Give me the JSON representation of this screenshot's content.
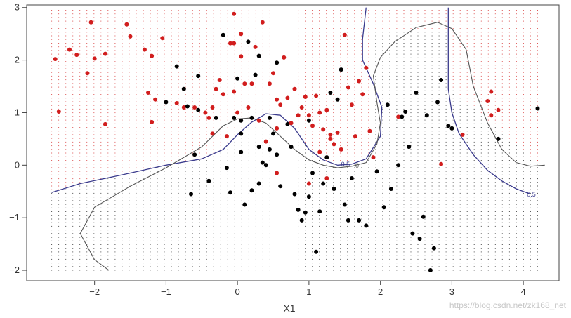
{
  "chart_data": {
    "type": "scatter",
    "title": "",
    "xlabel": "X1",
    "ylabel": "",
    "xlim": [
      -2.95,
      4.5
    ],
    "ylim": [
      -2.2,
      3.05
    ],
    "xticks": [
      "−2",
      "−1",
      "0",
      "1",
      "2",
      "3",
      "4"
    ],
    "xtick_values": [
      -2,
      -1,
      0,
      1,
      2,
      3,
      4
    ],
    "yticks": [
      "−2",
      "−1",
      "0",
      "1",
      "2",
      "3"
    ],
    "ytick_values": [
      -2,
      -1,
      0,
      1,
      2,
      3
    ],
    "grid": {
      "x_range": [
        -2.6,
        4.2
      ],
      "y_range": [
        -2.0,
        2.95
      ],
      "cols": 70,
      "rows": 72
    },
    "colors": {
      "class0": "#000000",
      "class1": "#d11d1d",
      "grid_class0": "#000000",
      "grid_class1": "#d11d1d",
      "bayes_boundary": "#3a3a8c",
      "model_boundary": "#555555"
    },
    "series": [
      {
        "class": 1,
        "points": [
          [
            -2.55,
            2.02
          ],
          [
            -2.5,
            1.02
          ],
          [
            -2.35,
            2.2
          ],
          [
            -2.25,
            2.1
          ],
          [
            -2.1,
            1.75
          ],
          [
            -2.05,
            2.72
          ],
          [
            -2.0,
            2.03
          ],
          [
            -1.85,
            2.12
          ],
          [
            -1.85,
            0.78
          ],
          [
            -1.55,
            2.68
          ],
          [
            -1.5,
            2.45
          ],
          [
            -1.3,
            2.2
          ],
          [
            -1.25,
            1.38
          ],
          [
            -1.2,
            2.08
          ],
          [
            -1.2,
            0.82
          ],
          [
            -1.15,
            1.25
          ],
          [
            -1.05,
            2.42
          ],
          [
            -0.85,
            1.18
          ],
          [
            -0.75,
            1.1
          ],
          [
            -0.6,
            1.1
          ],
          [
            -0.45,
            1.0
          ],
          [
            -0.4,
            0.9
          ],
          [
            -0.35,
            1.1
          ],
          [
            -0.35,
            0.6
          ],
          [
            -0.3,
            1.45
          ],
          [
            -0.25,
            1.62
          ],
          [
            -0.2,
            1.35
          ],
          [
            -0.15,
            0.55
          ],
          [
            -0.1,
            2.32
          ],
          [
            -0.05,
            2.88
          ],
          [
            -0.05,
            2.32
          ],
          [
            -0.05,
            1.4
          ],
          [
            0.0,
            1.0
          ],
          [
            0.05,
            2.5
          ],
          [
            0.05,
            2.07
          ],
          [
            0.1,
            1.55
          ],
          [
            0.15,
            1.1
          ],
          [
            0.2,
            1.55
          ],
          [
            0.25,
            2.25
          ],
          [
            0.3,
            0.85
          ],
          [
            0.35,
            2.72
          ],
          [
            0.4,
            0.45
          ],
          [
            0.45,
            1.55
          ],
          [
            0.5,
            1.75
          ],
          [
            0.55,
            1.25
          ],
          [
            0.55,
            0.7
          ],
          [
            0.6,
            1.15
          ],
          [
            0.65,
            2.05
          ],
          [
            0.7,
            1.28
          ],
          [
            0.75,
            0.8
          ],
          [
            0.85,
            0.95
          ],
          [
            0.9,
            1.1
          ],
          [
            0.95,
            1.3
          ],
          [
            1.0,
            0.95
          ],
          [
            1.05,
            0.75
          ],
          [
            1.1,
            1.32
          ],
          [
            1.15,
            1.0
          ],
          [
            1.2,
            0.68
          ],
          [
            1.25,
            1.05
          ],
          [
            1.3,
            0.5
          ],
          [
            1.35,
            0.4
          ],
          [
            1.4,
            0.62
          ],
          [
            1.45,
            0.3
          ],
          [
            1.5,
            2.48
          ],
          [
            1.55,
            1.48
          ],
          [
            1.6,
            1.15
          ],
          [
            1.65,
            0.55
          ],
          [
            1.7,
            1.6
          ],
          [
            1.75,
            1.35
          ],
          [
            1.8,
            1.85
          ],
          [
            1.85,
            0.65
          ],
          [
            1.9,
            0.15
          ],
          [
            1.15,
            0.25
          ],
          [
            0.55,
            -0.15
          ],
          [
            1.0,
            -0.35
          ],
          [
            1.25,
            -0.25
          ],
          [
            2.25,
            0.92
          ],
          [
            2.85,
            0.02
          ],
          [
            3.15,
            0.58
          ],
          [
            3.5,
            1.22
          ],
          [
            3.55,
            1.4
          ],
          [
            3.55,
            0.95
          ],
          [
            3.65,
            1.05
          ],
          [
            1.3,
            0.58
          ],
          [
            0.8,
            1.45
          ]
        ]
      },
      {
        "class": 0,
        "points": [
          [
            -1.0,
            1.2
          ],
          [
            -0.85,
            1.88
          ],
          [
            -0.75,
            1.45
          ],
          [
            -0.7,
            1.12
          ],
          [
            -0.65,
            -0.55
          ],
          [
            -0.6,
            0.2
          ],
          [
            -0.55,
            1.05
          ],
          [
            -0.55,
            1.7
          ],
          [
            -0.4,
            -0.3
          ],
          [
            -0.3,
            0.9
          ],
          [
            -0.2,
            2.48
          ],
          [
            -0.1,
            -0.52
          ],
          [
            -0.05,
            0.9
          ],
          [
            0.0,
            1.65
          ],
          [
            0.05,
            0.85
          ],
          [
            0.05,
            0.6
          ],
          [
            0.1,
            -0.75
          ],
          [
            0.15,
            2.35
          ],
          [
            0.2,
            0.9
          ],
          [
            0.2,
            -0.48
          ],
          [
            0.25,
            1.72
          ],
          [
            0.3,
            2.08
          ],
          [
            0.3,
            0.35
          ],
          [
            0.35,
            0.05
          ],
          [
            0.4,
            -0.0
          ],
          [
            0.45,
            0.3
          ],
          [
            0.45,
            0.9
          ],
          [
            0.5,
            0.6
          ],
          [
            0.55,
            1.95
          ],
          [
            0.55,
            0.2
          ],
          [
            0.6,
            -0.4
          ],
          [
            0.7,
            0.78
          ],
          [
            0.75,
            0.35
          ],
          [
            0.8,
            -0.55
          ],
          [
            0.85,
            -0.85
          ],
          [
            0.9,
            -1.05
          ],
          [
            0.95,
            -0.9
          ],
          [
            1.0,
            -0.6
          ],
          [
            1.05,
            -0.15
          ],
          [
            1.1,
            -1.65
          ],
          [
            1.15,
            -0.88
          ],
          [
            1.2,
            -0.35
          ],
          [
            1.25,
            0.15
          ],
          [
            1.3,
            1.38
          ],
          [
            1.35,
            -0.45
          ],
          [
            1.4,
            1.25
          ],
          [
            1.45,
            1.82
          ],
          [
            1.5,
            -0.75
          ],
          [
            1.55,
            -1.05
          ],
          [
            1.6,
            -0.25
          ],
          [
            1.7,
            -1.05
          ],
          [
            1.8,
            -1.15
          ],
          [
            1.95,
            -0.12
          ],
          [
            2.05,
            -0.8
          ],
          [
            2.1,
            1.15
          ],
          [
            2.15,
            -0.45
          ],
          [
            2.25,
            0.0
          ],
          [
            2.3,
            0.92
          ],
          [
            2.35,
            1.02
          ],
          [
            2.4,
            0.35
          ],
          [
            2.45,
            -1.3
          ],
          [
            2.5,
            1.38
          ],
          [
            2.55,
            -1.4
          ],
          [
            2.6,
            -0.98
          ],
          [
            2.65,
            0.95
          ],
          [
            2.7,
            -2.0
          ],
          [
            2.75,
            -1.58
          ],
          [
            2.8,
            1.2
          ],
          [
            2.85,
            1.62
          ],
          [
            2.95,
            0.75
          ],
          [
            3.0,
            0.7
          ],
          [
            3.65,
            0.5
          ],
          [
            4.2,
            1.08
          ],
          [
            -0.15,
            -0.05
          ],
          [
            0.3,
            -0.35
          ],
          [
            0.05,
            0.25
          ],
          [
            1.0,
            0.85
          ]
        ]
      }
    ],
    "contours": [
      {
        "name": "bayes",
        "label": "0.5",
        "points": [
          [
            -2.6,
            -0.52
          ],
          [
            -2.2,
            -0.35
          ],
          [
            -1.6,
            -0.18
          ],
          [
            -1.0,
            0.0
          ],
          [
            -0.5,
            0.12
          ],
          [
            -0.2,
            0.3
          ],
          [
            0.0,
            0.58
          ],
          [
            0.2,
            0.82
          ],
          [
            0.4,
            0.98
          ],
          [
            0.6,
            0.95
          ],
          [
            0.8,
            0.7
          ],
          [
            1.0,
            0.3
          ],
          [
            1.2,
            0.1
          ],
          [
            1.4,
            0.0
          ],
          [
            1.6,
            0.02
          ],
          [
            1.8,
            0.12
          ],
          [
            2.0,
            0.55
          ],
          [
            2.02,
            1.1
          ],
          [
            1.9,
            1.55
          ],
          [
            1.75,
            2.0
          ],
          [
            1.75,
            2.4
          ],
          [
            1.8,
            3.0
          ]
        ]
      },
      {
        "name": "bayes2",
        "label": "0.5",
        "points": [
          [
            2.95,
            3.0
          ],
          [
            2.95,
            2.5
          ],
          [
            2.95,
            2.0
          ],
          [
            2.95,
            1.45
          ],
          [
            3.0,
            1.0
          ],
          [
            3.1,
            0.6
          ],
          [
            3.3,
            0.2
          ],
          [
            3.5,
            -0.1
          ],
          [
            3.7,
            -0.3
          ],
          [
            3.9,
            -0.45
          ],
          [
            4.1,
            -0.55
          ]
        ]
      },
      {
        "name": "model",
        "label": "0.5",
        "points": [
          [
            -1.8,
            -2.0
          ],
          [
            -2.0,
            -1.8
          ],
          [
            -2.2,
            -1.3
          ],
          [
            -2.0,
            -0.8
          ],
          [
            -1.5,
            -0.4
          ],
          [
            -1.0,
            -0.05
          ],
          [
            -0.5,
            0.35
          ],
          [
            -0.2,
            0.75
          ],
          [
            0.0,
            0.88
          ],
          [
            0.2,
            0.9
          ],
          [
            0.4,
            0.8
          ],
          [
            0.6,
            0.55
          ],
          [
            0.8,
            0.3
          ],
          [
            1.0,
            0.1
          ],
          [
            1.2,
            0.0
          ],
          [
            1.4,
            -0.05
          ],
          [
            1.6,
            -0.02
          ],
          [
            1.8,
            0.05
          ],
          [
            1.95,
            0.4
          ],
          [
            2.0,
            0.8
          ],
          [
            1.95,
            1.2
          ],
          [
            1.9,
            1.7
          ],
          [
            2.0,
            2.05
          ],
          [
            2.2,
            2.35
          ],
          [
            2.5,
            2.62
          ],
          [
            2.8,
            2.72
          ],
          [
            3.0,
            2.6
          ],
          [
            3.2,
            2.2
          ],
          [
            3.3,
            1.5
          ],
          [
            3.5,
            0.8
          ],
          [
            3.7,
            0.3
          ],
          [
            3.9,
            0.05
          ],
          [
            4.1,
            -0.02
          ],
          [
            4.3,
            0.0
          ]
        ]
      }
    ],
    "contour_labels": [
      "0.5",
      "0",
      "0.5"
    ]
  },
  "watermark": "https://blog.csdn.net/zk168_net"
}
